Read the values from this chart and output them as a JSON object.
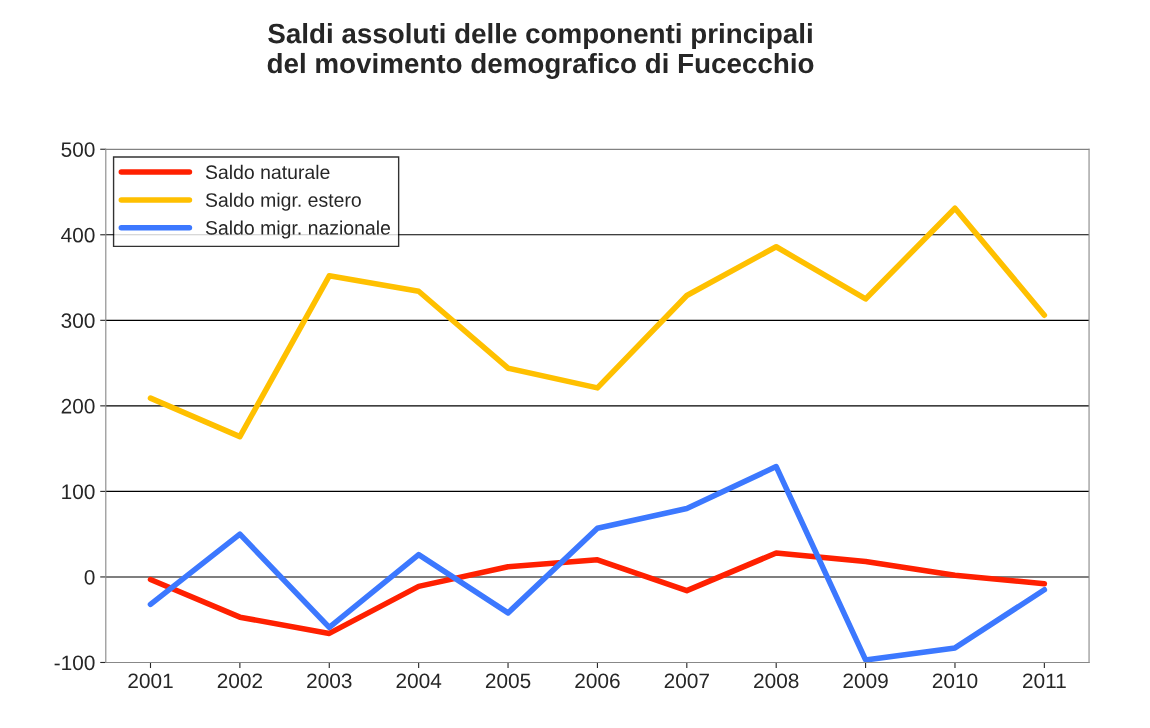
{
  "chart_data": {
    "type": "line",
    "title": "Saldi assoluti delle componenti principali\ndel movimento demografico di Fucecchio",
    "categories": [
      "2001",
      "2002",
      "2003",
      "2004",
      "2005",
      "2006",
      "2007",
      "2008",
      "2009",
      "2010",
      "2011"
    ],
    "series": [
      {
        "name": "Saldo naturale",
        "color": "#ff2000",
        "values": [
          -3,
          -47,
          -66,
          -11,
          12,
          20,
          -16,
          28,
          18,
          2,
          -8
        ]
      },
      {
        "name": "Saldo migr. estero",
        "color": "#ffc000",
        "values": [
          209,
          164,
          352,
          334,
          244,
          221,
          329,
          386,
          325,
          431,
          306
        ]
      },
      {
        "name": "Saldo migr. nazionale",
        "color": "#3c78ff",
        "values": [
          -32,
          50,
          -59,
          26,
          -42,
          57,
          80,
          129,
          -97,
          -83,
          -15
        ]
      }
    ],
    "ylim": [
      -100,
      500
    ],
    "yticks": [
      -100,
      0,
      100,
      200,
      300,
      400,
      500
    ],
    "grid": "y",
    "legend": "top left",
    "marker": "none",
    "line_style": "solid"
  }
}
